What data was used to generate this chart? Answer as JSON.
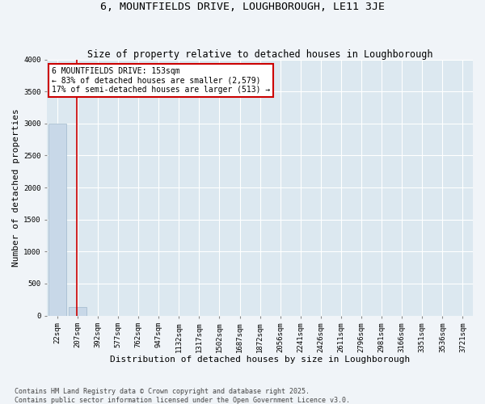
{
  "title": "6, MOUNTFIELDS DRIVE, LOUGHBOROUGH, LE11 3JE",
  "subtitle": "Size of property relative to detached houses in Loughborough",
  "xlabel": "Distribution of detached houses by size in Loughborough",
  "ylabel": "Number of detached properties",
  "categories": [
    "22sqm",
    "207sqm",
    "392sqm",
    "577sqm",
    "762sqm",
    "947sqm",
    "1132sqm",
    "1317sqm",
    "1502sqm",
    "1687sqm",
    "1872sqm",
    "2056sqm",
    "2241sqm",
    "2426sqm",
    "2611sqm",
    "2796sqm",
    "2981sqm",
    "3166sqm",
    "3351sqm",
    "3536sqm",
    "3721sqm"
  ],
  "values": [
    3000,
    130,
    0,
    0,
    0,
    0,
    0,
    0,
    0,
    0,
    0,
    0,
    0,
    0,
    0,
    0,
    0,
    0,
    0,
    0,
    0
  ],
  "bar_color": "#c8d8e8",
  "bar_edge_color": "#a0b8cc",
  "vline_color": "#cc0000",
  "annotation_text": "6 MOUNTFIELDS DRIVE: 153sqm\n← 83% of detached houses are smaller (2,579)\n17% of semi-detached houses are larger (513) →",
  "annotation_box_color": "#ffffff",
  "annotation_box_edge": "#cc0000",
  "ylim": [
    0,
    4000
  ],
  "yticks": [
    0,
    500,
    1000,
    1500,
    2000,
    2500,
    3000,
    3500,
    4000
  ],
  "bg_color": "#dce8f0",
  "grid_color": "#ffffff",
  "fig_bg_color": "#f0f4f8",
  "footer_line1": "Contains HM Land Registry data © Crown copyright and database right 2025.",
  "footer_line2": "Contains public sector information licensed under the Open Government Licence v3.0.",
  "title_fontsize": 9.5,
  "subtitle_fontsize": 8.5,
  "tick_fontsize": 6.5,
  "label_fontsize": 8,
  "footer_fontsize": 6,
  "annotation_fontsize": 7
}
